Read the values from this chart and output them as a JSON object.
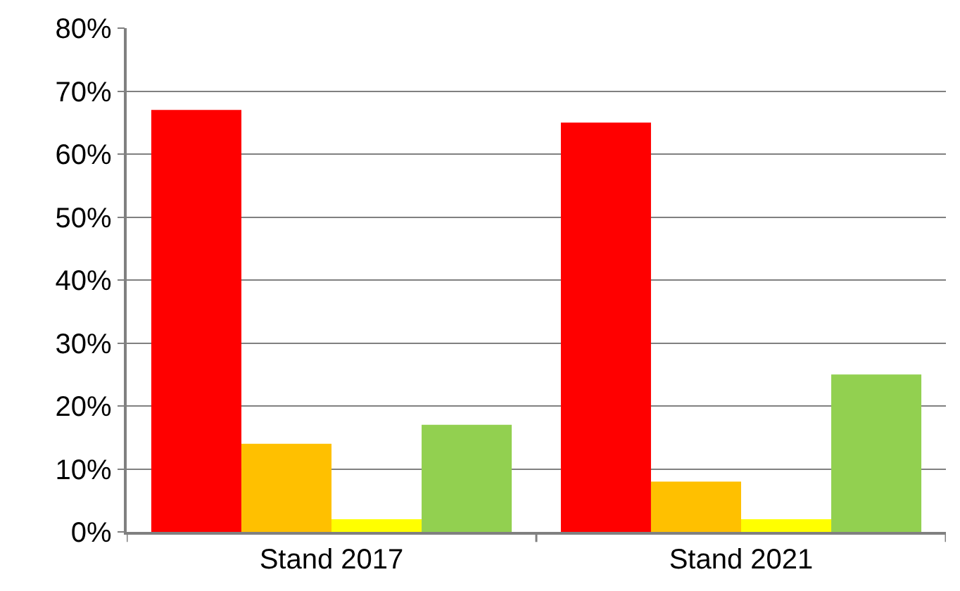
{
  "chart_data": {
    "type": "bar",
    "categories": [
      "Stand 2017",
      "Stand 2021"
    ],
    "series": [
      {
        "color": "#ff0000",
        "values": [
          67,
          65
        ]
      },
      {
        "color": "#ffc000",
        "values": [
          14,
          8
        ]
      },
      {
        "color": "#ffff00",
        "values": [
          2,
          2
        ]
      },
      {
        "color": "#92d050",
        "values": [
          17,
          25
        ]
      }
    ],
    "ylim": [
      0,
      80
    ],
    "yticks": [
      {
        "value": 0,
        "label": "0%"
      },
      {
        "value": 10,
        "label": "10%"
      },
      {
        "value": 20,
        "label": "20%"
      },
      {
        "value": 30,
        "label": "30%"
      },
      {
        "value": 40,
        "label": "40%"
      },
      {
        "value": 50,
        "label": "50%"
      },
      {
        "value": 60,
        "label": "60%"
      },
      {
        "value": 70,
        "label": "70%"
      },
      {
        "value": 80,
        "label": "80%"
      }
    ],
    "grid": "y"
  }
}
